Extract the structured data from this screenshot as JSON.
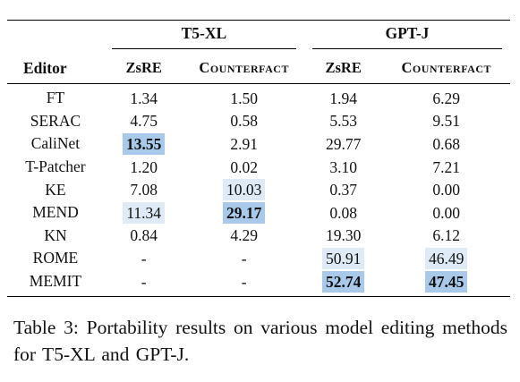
{
  "table": {
    "group_headers": [
      "T5-XL",
      "GPT-J"
    ],
    "editor_header": "Editor",
    "sub_headers": [
      "ZsRE",
      "Counterfact",
      "ZsRE",
      "Counterfact"
    ],
    "rows": [
      {
        "editor": "FT",
        "values": [
          "1.34",
          "1.50",
          "1.94",
          "6.29"
        ],
        "highlight": [
          "",
          "",
          "",
          ""
        ]
      },
      {
        "editor": "SERAC",
        "values": [
          "4.75",
          "0.58",
          "5.53",
          "9.51"
        ],
        "highlight": [
          "",
          "",
          "",
          ""
        ]
      },
      {
        "editor": "CaliNet",
        "values": [
          "13.55",
          "2.91",
          "29.77",
          "0.68"
        ],
        "highlight": [
          "strong",
          "",
          "",
          ""
        ]
      },
      {
        "editor": "T-Patcher",
        "values": [
          "1.20",
          "0.02",
          "3.10",
          "7.21"
        ],
        "highlight": [
          "",
          "",
          "",
          ""
        ]
      },
      {
        "editor": "KE",
        "values": [
          "7.08",
          "10.03",
          "0.37",
          "0.00"
        ],
        "highlight": [
          "",
          "light",
          "",
          ""
        ]
      },
      {
        "editor": "MEND",
        "values": [
          "11.34",
          "29.17",
          "0.08",
          "0.00"
        ],
        "highlight": [
          "light",
          "strong",
          "",
          ""
        ]
      },
      {
        "editor": "KN",
        "values": [
          "0.84",
          "4.29",
          "19.30",
          "6.12"
        ],
        "highlight": [
          "",
          "",
          "",
          ""
        ]
      },
      {
        "editor": "ROME",
        "values": [
          "-",
          "-",
          "50.91",
          "46.49"
        ],
        "highlight": [
          "",
          "",
          "light",
          "light"
        ]
      },
      {
        "editor": "MEMIT",
        "values": [
          "-",
          "-",
          "52.74",
          "47.45"
        ],
        "highlight": [
          "",
          "",
          "strong",
          "strong"
        ]
      }
    ],
    "colors": {
      "light": "#deebf7",
      "strong": "#a9c9ea"
    }
  },
  "caption": "Table 3: Portability results on various model editing methods for T5-XL and GPT-J."
}
